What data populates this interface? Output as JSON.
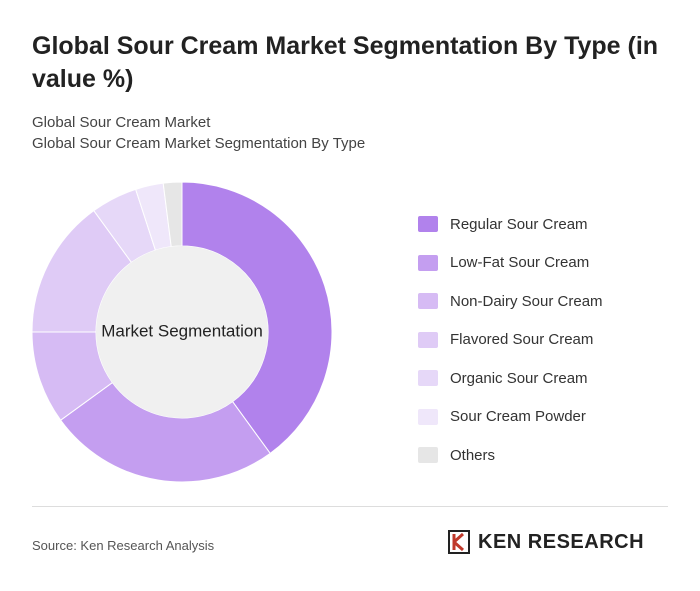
{
  "chart_data": {
    "type": "donut",
    "title": "Global Sour Cream Market Segmentation By Type (in value %)",
    "subtitle": [
      "Global Sour Cream Market",
      "Global Sour Cream Market Segmentation By Type"
    ],
    "center_label": "Market Segmentation",
    "categories": [
      "Regular Sour Cream",
      "Low-Fat Sour Cream",
      "Non-Dairy Sour Cream",
      "Flavored Sour Cream",
      "Organic Sour Cream",
      "Sour Cream Powder",
      "Others"
    ],
    "values": [
      40,
      25,
      10,
      15,
      5,
      3,
      2
    ],
    "colors": [
      "#b182ec",
      "#c49ef0",
      "#d6bbf4",
      "#dfcbf6",
      "#e6d8f8",
      "#efe7fa",
      "#e6e6e6"
    ],
    "source": "Source: Ken Research Analysis",
    "brand": "KEN RESEARCH"
  }
}
